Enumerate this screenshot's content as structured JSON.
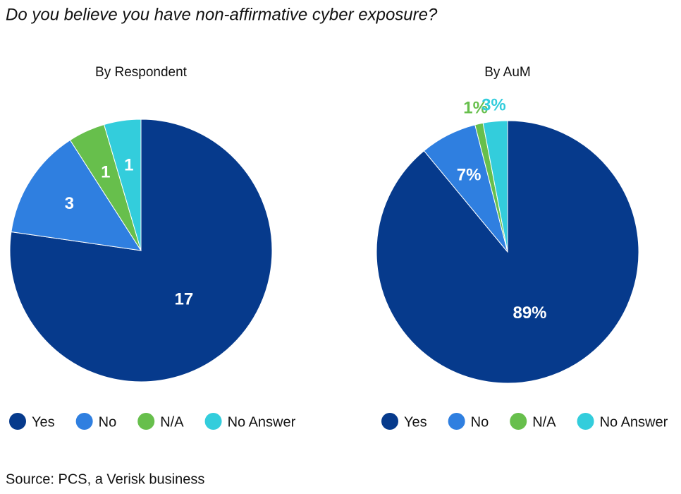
{
  "title": "Do you believe you have non-affirmative cyber exposure?",
  "source": "Source: PCS, a Verisk business",
  "chart_data": [
    {
      "type": "pie",
      "title": "By Respondent",
      "categories": [
        "Yes",
        "No",
        "N/A",
        "No Answer"
      ],
      "values": [
        17,
        3,
        1,
        1
      ],
      "colors": [
        "#063a8c",
        "#2f7fe0",
        "#67bf4c",
        "#33cddc"
      ]
    },
    {
      "type": "pie",
      "title": "By AuM",
      "categories": [
        "Yes",
        "No",
        "N/A",
        "No Answer"
      ],
      "values": [
        89,
        7,
        1,
        3
      ],
      "value_labels": [
        "89%",
        "7%",
        "1%",
        "3%"
      ],
      "colors": [
        "#063a8c",
        "#2f7fe0",
        "#67bf4c",
        "#33cddc"
      ]
    }
  ]
}
